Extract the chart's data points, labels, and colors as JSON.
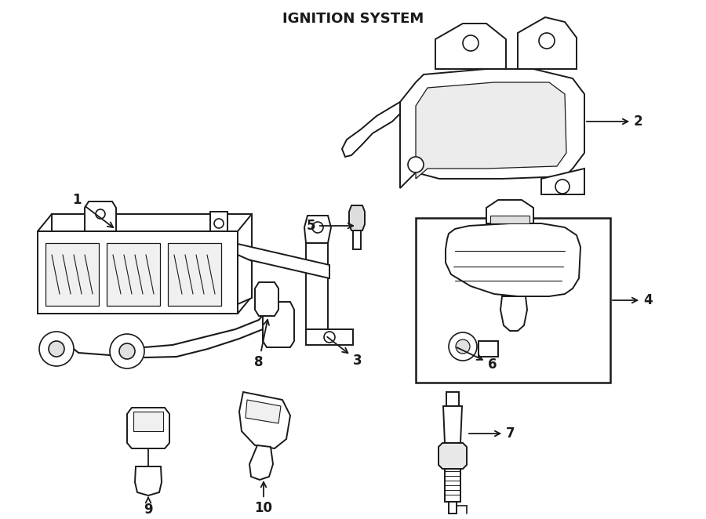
{
  "title": "IGNITION SYSTEM",
  "background_color": "#ffffff",
  "line_color": "#1a1a1a",
  "fig_width": 9.0,
  "fig_height": 6.62,
  "dpi": 100,
  "label_fontsize": 12
}
